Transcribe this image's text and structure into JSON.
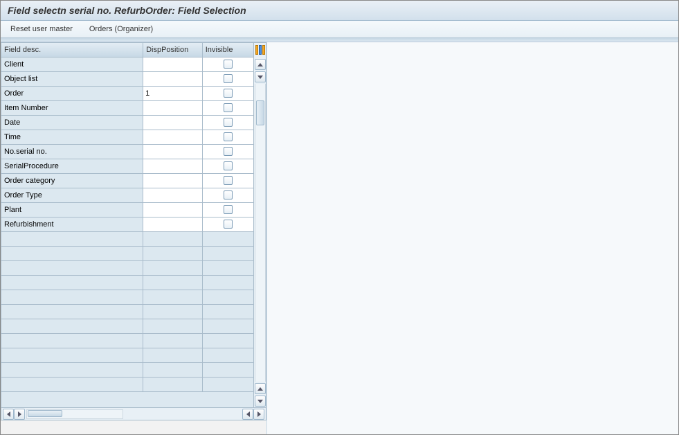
{
  "title": "Field selectn serial no. RefurbOrder: Field Selection",
  "toolbar": {
    "reset_master": "Reset user master",
    "orders_organizer": "Orders (Organizer)"
  },
  "table": {
    "columns": {
      "field_desc": "Field desc.",
      "disp_position": "DispPosition",
      "invisible": "Invisible"
    },
    "rows": [
      {
        "desc": "Client",
        "pos": "",
        "invisible": false
      },
      {
        "desc": "Object list",
        "pos": "",
        "invisible": false
      },
      {
        "desc": "Order",
        "pos": "1",
        "invisible": false
      },
      {
        "desc": "Item Number",
        "pos": "",
        "invisible": false
      },
      {
        "desc": "Date",
        "pos": "",
        "invisible": false
      },
      {
        "desc": "Time",
        "pos": "",
        "invisible": false
      },
      {
        "desc": "No.serial no.",
        "pos": "",
        "invisible": false
      },
      {
        "desc": "SerialProcedure",
        "pos": "",
        "invisible": false
      },
      {
        "desc": "Order category",
        "pos": "",
        "invisible": false
      },
      {
        "desc": "Order Type",
        "pos": "",
        "invisible": false
      },
      {
        "desc": "Plant",
        "pos": "",
        "invisible": false
      },
      {
        "desc": "Refurbishment",
        "pos": "",
        "invisible": false
      }
    ],
    "empty_rows": 11
  },
  "colors": {
    "header_grad_top": "#eaf0f6",
    "header_grad_bottom": "#d2e0ec",
    "border": "#a9bccb",
    "cell_bg": "#dce8f0",
    "input_bg": "#ffffff"
  }
}
